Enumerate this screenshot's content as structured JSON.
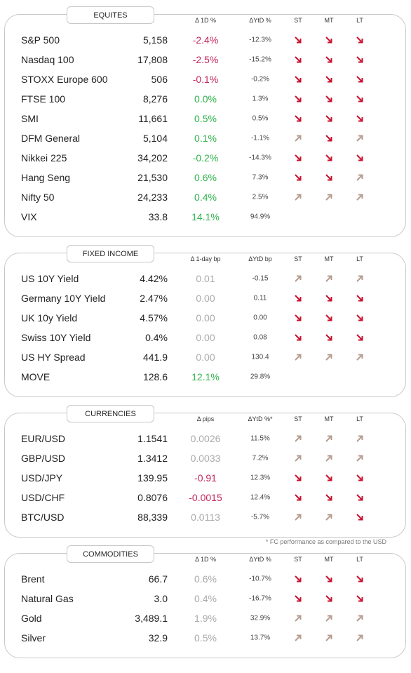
{
  "sections": [
    {
      "title": "EQUITES",
      "headers": [
        "Δ 1D %",
        "ΔYtD %",
        "ST",
        "MT",
        "LT"
      ],
      "rows": [
        [
          "S&P 500",
          "5,158",
          "-2.4%",
          "-12.3%"
        ],
        [
          "Nasdaq 100",
          "17,808",
          "-2.5%",
          "-15.2%"
        ],
        [
          "STOXX Europe 600",
          "506",
          "-0.1%",
          "-0.2%"
        ],
        [
          "FTSE 100",
          "8,276",
          "0.0%",
          "1.3%"
        ],
        [
          "SMI",
          "11,661",
          "0.5%",
          "0.5%"
        ],
        [
          "DFM General",
          "5,104",
          "0.1%",
          "-1.1%"
        ],
        [
          "Nikkei 225",
          "34,202",
          "-0.2%",
          "-14.3%"
        ],
        [
          "Hang Seng",
          "21,530",
          "0.6%",
          "7.3%"
        ],
        [
          "Nifty  50",
          "24,233",
          "0.4%",
          "2.5%"
        ],
        [
          "VIX",
          "33.8",
          "14.1%",
          "94.9%"
        ]
      ]
    },
    {
      "title": "FIXED INCOME",
      "headers": [
        "Δ 1-day bp",
        "ΔYtD bp",
        "ST",
        "MT",
        "LT"
      ],
      "rows": [
        [
          "US 10Y Yield",
          "4.42%",
          "0.01",
          "-0.15"
        ],
        [
          "Germany 10Y Yield",
          "2.47%",
          "0.00",
          "0.11"
        ],
        [
          "UK 10y Yield",
          "4.57%",
          "0.00",
          "0.00"
        ],
        [
          "Swiss 10Y Yield",
          "0.4%",
          "0.00",
          "0.08"
        ],
        [
          "US HY Spread",
          "441.9",
          "0.00",
          "130.4"
        ],
        [
          "MOVE",
          "128.6",
          "12.1%",
          "29.8%"
        ]
      ]
    },
    {
      "title": "CURRENCIES",
      "headers": [
        "Δ pips",
        "ΔYtD %*",
        "ST",
        "MT",
        "LT"
      ],
      "rows": [
        [
          "EUR/USD",
          "1.1541",
          "0.0026",
          "11.5%"
        ],
        [
          "GBP/USD",
          "1.3412",
          "0.0033",
          "7.2%"
        ],
        [
          "USD/JPY",
          "139.95",
          "-0.91",
          "12.3%"
        ],
        [
          "USD/CHF",
          "0.8076",
          "-0.0015",
          "12.4%"
        ],
        [
          "BTC/USD",
          "88,339",
          "0.0113",
          "-5.7%"
        ]
      ]
    },
    {
      "title": "COMMODITIES",
      "headers": [
        "Δ 1D %",
        "ΔYtD %",
        "ST",
        "MT",
        "LT"
      ],
      "rows": [
        [
          "Brent",
          "66.7",
          "0.6%",
          "-10.7%"
        ],
        [
          "Natural Gas",
          "3.0",
          "0.4%",
          "-16.7%"
        ],
        [
          "Gold",
          "3,489.1",
          "1.9%",
          "32.9%"
        ],
        [
          "Silver",
          "32.9",
          "0.5%",
          "13.7%"
        ]
      ]
    }
  ],
  "footnote": "* FC performance as compared to the USD"
}
